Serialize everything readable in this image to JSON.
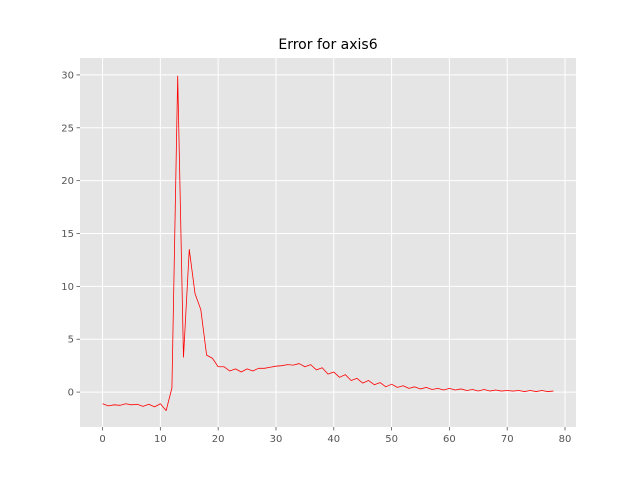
{
  "chart_data": {
    "type": "line",
    "title": "Error for axis6",
    "xlabel": "",
    "ylabel": "",
    "xlim": [
      -3.9,
      81.9
    ],
    "ylim": [
      -3.3,
      31.6
    ],
    "xticks": [
      0,
      10,
      20,
      30,
      40,
      50,
      60,
      70,
      80
    ],
    "yticks": [
      0,
      5,
      10,
      15,
      20,
      25,
      30
    ],
    "grid": true,
    "style": {
      "background": "#e5e5e5",
      "grid_color": "#ffffff",
      "line_color": "#ff0000"
    },
    "series": [
      {
        "x": [
          0,
          1,
          2,
          3,
          4,
          5,
          6,
          7,
          8,
          9,
          10,
          11,
          12,
          13,
          14,
          15,
          16,
          17,
          18,
          19,
          20,
          21,
          22,
          23,
          24,
          25,
          26,
          27,
          28,
          29,
          30,
          31,
          32,
          33,
          34,
          35,
          36,
          37,
          38,
          39,
          40,
          41,
          42,
          43,
          44,
          45,
          46,
          47,
          48,
          49,
          50,
          51,
          52,
          53,
          54,
          55,
          56,
          57,
          58,
          59,
          60,
          61,
          62,
          63,
          64,
          65,
          66,
          67,
          68,
          69,
          70,
          71,
          72,
          73,
          74,
          75,
          76,
          77,
          78
        ],
        "values": [
          -1.1,
          -1.3,
          -1.2,
          -1.25,
          -1.1,
          -1.2,
          -1.15,
          -1.35,
          -1.15,
          -1.4,
          -1.1,
          -1.75,
          0.4,
          29.9,
          3.3,
          13.5,
          9.3,
          7.8,
          3.5,
          3.2,
          2.4,
          2.4,
          2.0,
          2.2,
          1.9,
          2.2,
          2.0,
          2.25,
          2.25,
          2.35,
          2.45,
          2.5,
          2.6,
          2.55,
          2.7,
          2.4,
          2.6,
          2.1,
          2.3,
          1.7,
          1.9,
          1.4,
          1.65,
          1.1,
          1.3,
          0.85,
          1.1,
          0.7,
          0.9,
          0.5,
          0.75,
          0.45,
          0.6,
          0.35,
          0.5,
          0.3,
          0.45,
          0.25,
          0.35,
          0.2,
          0.35,
          0.2,
          0.3,
          0.15,
          0.25,
          0.1,
          0.25,
          0.1,
          0.2,
          0.1,
          0.15,
          0.1,
          0.15,
          0.05,
          0.15,
          0.05,
          0.15,
          0.05,
          0.1
        ]
      }
    ]
  }
}
